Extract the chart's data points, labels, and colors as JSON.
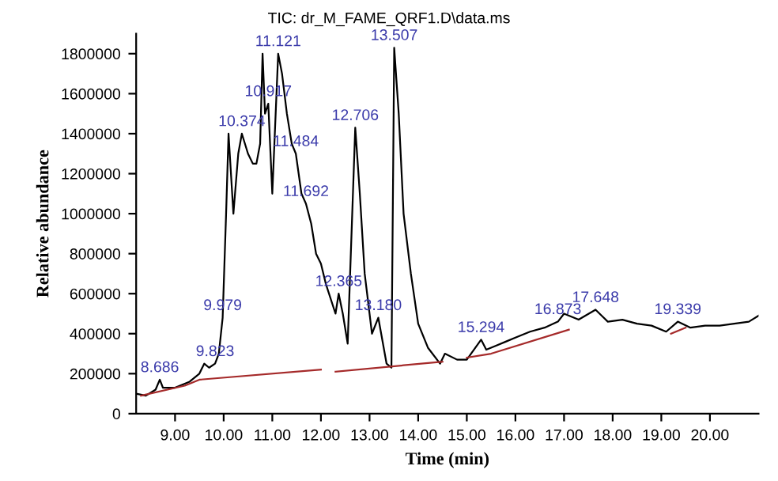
{
  "chart_data": {
    "type": "line",
    "title": "TIC: dr_M_FAME_QRF1.D\\data.ms",
    "xlabel": "Time (min)",
    "ylabel": "Relative abundance",
    "xlim": [
      8.2,
      21.0
    ],
    "ylim": [
      0,
      1900000
    ],
    "xticks": [
      {
        "value": 9,
        "label": "9.00"
      },
      {
        "value": 10,
        "label": "10.00"
      },
      {
        "value": 11,
        "label": "11.00"
      },
      {
        "value": 12,
        "label": "12.00"
      },
      {
        "value": 13,
        "label": "13.00"
      },
      {
        "value": 14,
        "label": "14.00"
      },
      {
        "value": 15,
        "label": "15.00"
      },
      {
        "value": 16,
        "label": "16.00"
      },
      {
        "value": 17,
        "label": "17.00"
      },
      {
        "value": 18,
        "label": "18.00"
      },
      {
        "value": 19,
        "label": "19.00"
      },
      {
        "value": 20,
        "label": "20.00"
      }
    ],
    "yticks": [
      0,
      200000,
      400000,
      600000,
      800000,
      1000000,
      1200000,
      1400000,
      1600000,
      1800000
    ],
    "grid": false,
    "legend": false,
    "marker": "none",
    "line_style": "solid",
    "series": [
      {
        "color": "#000000",
        "x": [
          8.2,
          8.4,
          8.6,
          8.686,
          8.75,
          9.0,
          9.3,
          9.5,
          9.6,
          9.7,
          9.823,
          9.9,
          9.979,
          10.05,
          10.1,
          10.2,
          10.3,
          10.374,
          10.5,
          10.6,
          10.673,
          10.75,
          10.8,
          10.85,
          10.917,
          11.0,
          11.121,
          11.2,
          11.3,
          11.4,
          11.484,
          11.6,
          11.692,
          11.8,
          11.9,
          12.0,
          12.1,
          12.3,
          12.365,
          12.45,
          12.55,
          12.706,
          12.8,
          12.9,
          13.05,
          13.18,
          13.35,
          13.45,
          13.507,
          13.6,
          13.7,
          13.85,
          14.0,
          14.2,
          14.45,
          14.55,
          14.8,
          15.0,
          15.294,
          15.4,
          15.6,
          15.8,
          16.0,
          16.3,
          16.6,
          16.873,
          17.0,
          17.3,
          17.648,
          17.9,
          18.2,
          18.5,
          18.8,
          19.1,
          19.339,
          19.6,
          19.9,
          20.2,
          20.5,
          20.8,
          21.0
        ],
        "values": [
          100000,
          90000,
          120000,
          170000,
          130000,
          130000,
          160000,
          200000,
          250000,
          230000,
          250000,
          300000,
          480000,
          1000000,
          1400000,
          1000000,
          1300000,
          1400000,
          1300000,
          1250000,
          1250000,
          1350000,
          1800000,
          1500000,
          1550000,
          1100000,
          1800000,
          1700000,
          1500000,
          1350000,
          1300000,
          1100000,
          1050000,
          950000,
          800000,
          750000,
          650000,
          500000,
          600000,
          500000,
          350000,
          1430000,
          1100000,
          700000,
          400000,
          480000,
          250000,
          230000,
          1830000,
          1500000,
          1000000,
          700000,
          450000,
          330000,
          250000,
          300000,
          270000,
          270000,
          370000,
          320000,
          340000,
          360000,
          380000,
          410000,
          430000,
          460000,
          500000,
          470000,
          520000,
          460000,
          470000,
          450000,
          440000,
          410000,
          460000,
          430000,
          440000,
          440000,
          450000,
          460000,
          490000
        ]
      },
      {
        "color": "#a52a2a",
        "x": [
          8.3,
          9.2,
          9.5,
          12.0
        ],
        "values": [
          90000,
          140000,
          170000,
          220000
        ]
      },
      {
        "color": "#a52a2a",
        "x": [
          12.3,
          14.5
        ],
        "values": [
          210000,
          260000
        ]
      },
      {
        "color": "#a52a2a",
        "x": [
          15.0,
          15.5,
          17.1
        ],
        "values": [
          280000,
          300000,
          420000
        ]
      },
      {
        "color": "#a52a2a",
        "x": [
          19.2,
          19.5
        ],
        "values": [
          400000,
          430000
        ]
      }
    ],
    "annotations": [
      {
        "text": "8.686",
        "x": 8.686,
        "y": 170000
      },
      {
        "text": "9.823",
        "x": 9.823,
        "y": 250000
      },
      {
        "text": "9.979",
        "x": 9.979,
        "y": 480000
      },
      {
        "text": "10.374",
        "x": 10.374,
        "y": 1400000
      },
      {
        "text": "10.917",
        "x": 10.917,
        "y": 1550000
      },
      {
        "text": "11.121",
        "x": 11.121,
        "y": 1800000
      },
      {
        "text": "11.484",
        "x": 11.484,
        "y": 1300000
      },
      {
        "text": "11.692",
        "x": 11.692,
        "y": 1050000
      },
      {
        "text": "12.365",
        "x": 12.365,
        "y": 600000
      },
      {
        "text": "12.706",
        "x": 12.706,
        "y": 1430000
      },
      {
        "text": "13.180",
        "x": 13.18,
        "y": 480000
      },
      {
        "text": "13.507",
        "x": 13.507,
        "y": 1830000
      },
      {
        "text": "15.294",
        "x": 15.294,
        "y": 370000
      },
      {
        "text": "16.873",
        "x": 16.873,
        "y": 460000
      },
      {
        "text": "17.648",
        "x": 17.648,
        "y": 520000
      },
      {
        "text": "19.339",
        "x": 19.339,
        "y": 460000
      }
    ]
  }
}
